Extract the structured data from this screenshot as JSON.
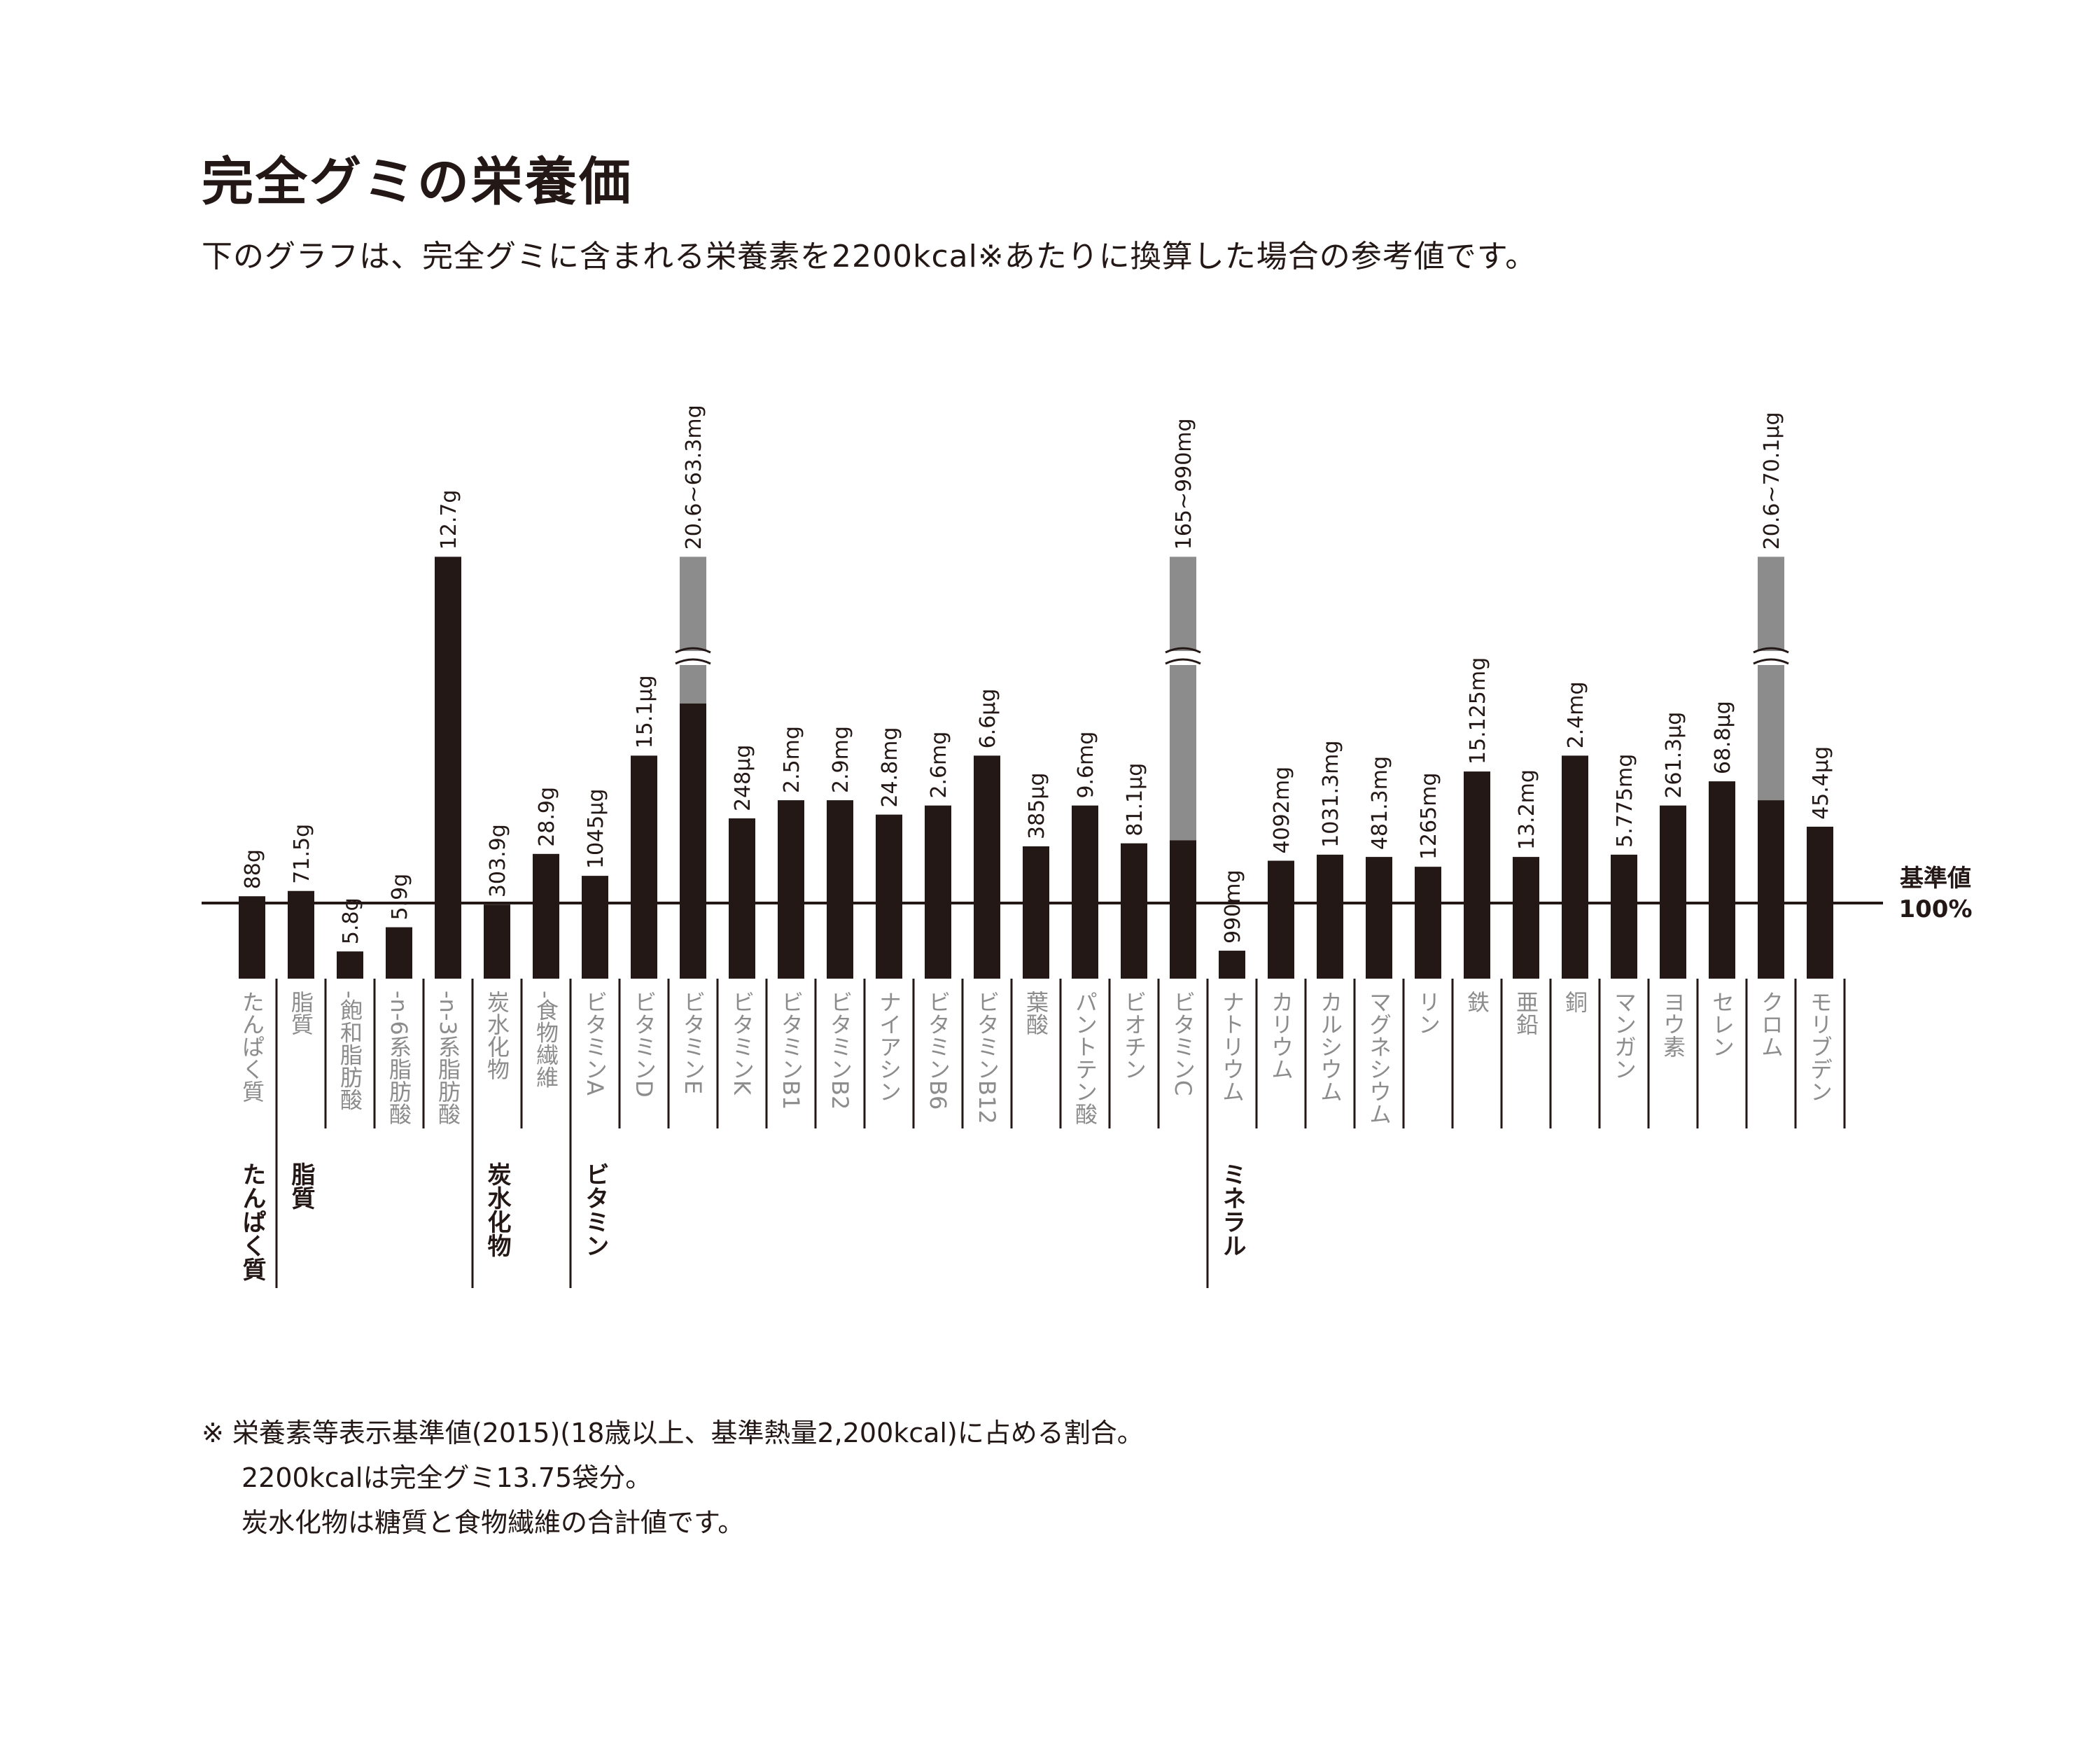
{
  "title": "完全グミの栄養価",
  "subtitle": "下のグラフは、完全グミに含まれる栄養素を2200kcal※あたりに換算した場合の参考値です。",
  "reference_label": [
    "基準値",
    "100%"
  ],
  "footnotes": {
    "line1": "※ 栄養素等表示基準値(2015)(18歳以上、基準熱量2,200kcal)に占める割合。",
    "line2": "2200kcalは完全グミ13.75袋分。",
    "line3": "炭水化物は糖質と食物繊維の合計値です。"
  },
  "colors": {
    "bar": "#231815",
    "range_bar": "#8c8c8c",
    "name_text": "#8c8c8c",
    "group_text": "#231815"
  },
  "chart_data": {
    "type": "bar",
    "value_unit": "% of 栄養素等表示基準値",
    "reference_value": 100,
    "ylim": [
      0,
      400
    ],
    "categories": [
      "たんぱく質",
      "脂質",
      "-飽和脂肪酸",
      "-n-6系脂肪酸",
      "-n-3系脂肪酸",
      "炭水化物",
      "-食物繊維",
      "ビタミンA",
      "ビタミンD",
      "ビタミンE",
      "ビタミンK",
      "ビタミンB1",
      "ビタミンB2",
      "ナイアシン",
      "ビタミンB6",
      "ビタミンB12",
      "葉酸",
      "パントテン酸",
      "ビオチン",
      "ビタミンC",
      "ナトリウム",
      "カリウム",
      "カルシウム",
      "マグネシウム",
      "リン",
      "鉄",
      "亜鉛",
      "銅",
      "マンガン",
      "ヨウ素",
      "セレン",
      "クロム",
      "モリブデン"
    ],
    "bars": [
      {
        "name": "たんぱく質",
        "label": "88g",
        "percent": 109
      },
      {
        "name": "脂質",
        "label": "71.5g",
        "percent": 116
      },
      {
        "name": "-飽和脂肪酸",
        "label": "5.8g",
        "percent": 36
      },
      {
        "name": "-n-6系脂肪酸",
        "label": "5.9g",
        "percent": 68
      },
      {
        "name": "-n-3系脂肪酸",
        "label": "12.7g",
        "percent": 558
      },
      {
        "name": "炭水化物",
        "label": "303.9g",
        "percent": 98
      },
      {
        "name": "-食物繊維",
        "label": "28.9g",
        "percent": 165
      },
      {
        "name": "ビタミンA",
        "label": "1045μg",
        "percent": 136
      },
      {
        "name": "ビタミンD",
        "label": "15.1μg",
        "percent": 295
      },
      {
        "name": "ビタミンE",
        "label": "20.6~63.3mg",
        "percent": 364,
        "range_top": 558,
        "break": true
      },
      {
        "name": "ビタミンK",
        "label": "248μg",
        "percent": 212
      },
      {
        "name": "ビタミンB1",
        "label": "2.5mg",
        "percent": 236
      },
      {
        "name": "ビタミンB2",
        "label": "2.9mg",
        "percent": 236
      },
      {
        "name": "ナイアシン",
        "label": "24.8mg",
        "percent": 217
      },
      {
        "name": "ビタミンB6",
        "label": "2.6mg",
        "percent": 229
      },
      {
        "name": "ビタミンB12",
        "label": "6.6μg",
        "percent": 295
      },
      {
        "name": "葉酸",
        "label": "385μg",
        "percent": 175
      },
      {
        "name": "パントテン酸",
        "label": "9.6mg",
        "percent": 229
      },
      {
        "name": "ビオチン",
        "label": "81.1μg",
        "percent": 179
      },
      {
        "name": "ビタミンC",
        "label": "165~990mg",
        "percent": 183,
        "range_top": 558,
        "break": true
      },
      {
        "name": "ナトリウム",
        "label": "990mg",
        "percent": 37
      },
      {
        "name": "カリウム",
        "label": "4092mg",
        "percent": 156
      },
      {
        "name": "カルシウム",
        "label": "1031.3mg",
        "percent": 164
      },
      {
        "name": "マグネシウム",
        "label": "481.3mg",
        "percent": 161
      },
      {
        "name": "リン",
        "label": "1265mg",
        "percent": 148
      },
      {
        "name": "鉄",
        "label": "15.125mg",
        "percent": 274
      },
      {
        "name": "亜鉛",
        "label": "13.2mg",
        "percent": 161
      },
      {
        "name": "銅",
        "label": "2.4mg",
        "percent": 295
      },
      {
        "name": "マンガン",
        "label": "5.775mg",
        "percent": 164
      },
      {
        "name": "ヨウ素",
        "label": "261.3μg",
        "percent": 229
      },
      {
        "name": "セレン",
        "label": "68.8μg",
        "percent": 261
      },
      {
        "name": "クロム",
        "label": "20.6~70.1μg",
        "percent": 236,
        "range_top": 558,
        "break": true
      },
      {
        "name": "モリブデン",
        "label": "45.4μg",
        "percent": 201
      }
    ],
    "groups": [
      {
        "label": "たんぱく質",
        "start": 0
      },
      {
        "label": "脂質",
        "start": 1
      },
      {
        "label": "炭水化物",
        "start": 5
      },
      {
        "label": "ビタミン",
        "start": 7
      },
      {
        "label": "ミネラル",
        "start": 20
      }
    ]
  }
}
